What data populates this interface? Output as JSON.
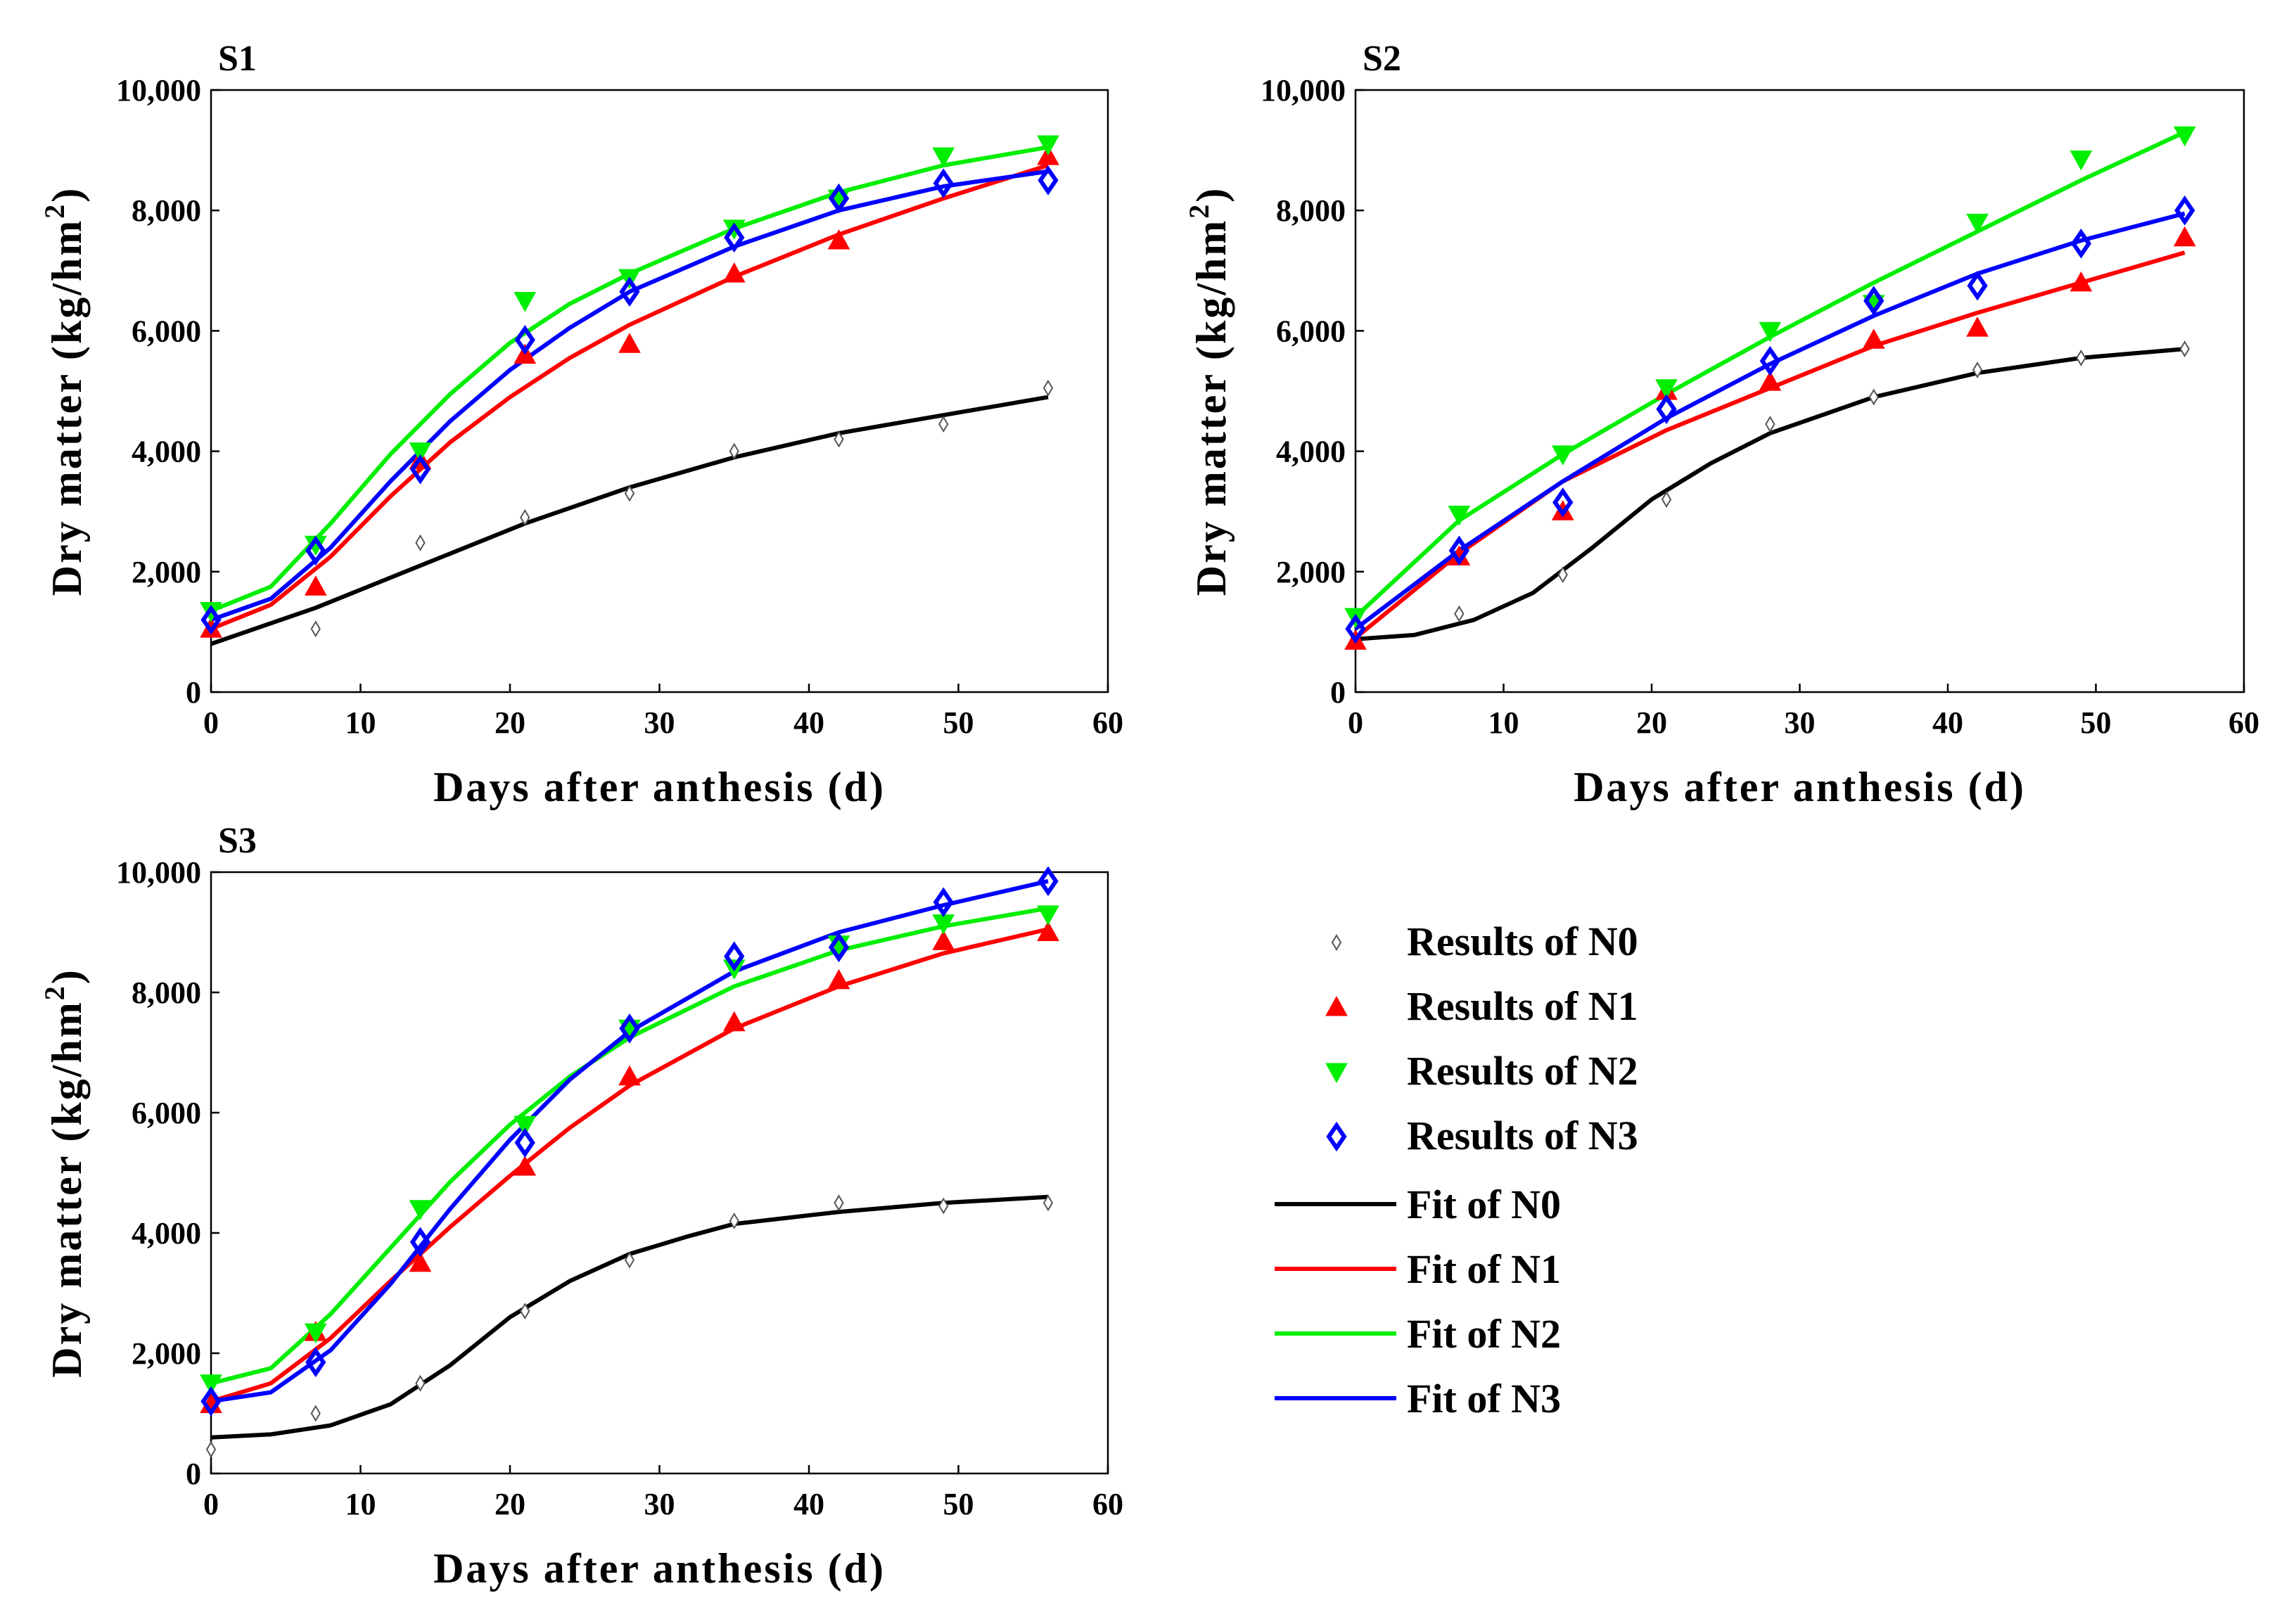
{
  "chart_data": [
    {
      "type": "line",
      "title": "S1",
      "xlabel": "Days after anthesis (d)",
      "ylabel": "Dry matter (kg/hm",
      "ylabel_sup": "2",
      "ylabel_end": ")",
      "xlim": [
        0,
        60
      ],
      "ylim": [
        0,
        10000
      ],
      "xticks": [
        "0",
        "10",
        "20",
        "30",
        "40",
        "50",
        "60"
      ],
      "yticks": [
        "0",
        "2,000",
        "4,000",
        "6,000",
        "8,000",
        "10,000"
      ],
      "x": [
        0,
        7,
        14,
        21,
        28,
        35,
        42,
        49,
        56
      ],
      "results": [
        {
          "name": "N0",
          "values": [
            1100,
            1050,
            2480,
            2900,
            3300,
            4000,
            4200,
            4450,
            5050
          ]
        },
        {
          "name": "N1",
          "values": [
            1050,
            1750,
            3850,
            5600,
            5780,
            6950,
            7500,
            null,
            8900
          ]
        },
        {
          "name": "N2",
          "values": [
            1350,
            2450,
            4000,
            6500,
            6880,
            7700,
            8200,
            8900,
            9100
          ]
        },
        {
          "name": "N3",
          "values": [
            1200,
            2350,
            3700,
            5850,
            6650,
            7550,
            8200,
            8450,
            8500
          ]
        }
      ],
      "fits": [
        {
          "name": "N0",
          "x": [
            0,
            7,
            14,
            21,
            28,
            35,
            42,
            49,
            56
          ],
          "values": [
            800,
            1400,
            2100,
            2800,
            3400,
            3900,
            4300,
            4600,
            4900
          ]
        },
        {
          "name": "N1",
          "x": [
            0,
            4,
            8,
            12,
            16,
            20,
            24,
            28,
            35,
            42,
            49,
            56
          ],
          "values": [
            1050,
            1450,
            2250,
            3250,
            4150,
            4900,
            5550,
            6100,
            6900,
            7600,
            8200,
            8750
          ]
        },
        {
          "name": "N2",
          "x": [
            0,
            4,
            8,
            12,
            16,
            20,
            24,
            28,
            35,
            42,
            49,
            56
          ],
          "values": [
            1350,
            1750,
            2800,
            3950,
            4950,
            5800,
            6450,
            6950,
            7700,
            8300,
            8750,
            9050
          ]
        },
        {
          "name": "N3",
          "x": [
            0,
            4,
            8,
            12,
            16,
            20,
            24,
            28,
            35,
            42,
            49,
            56
          ],
          "values": [
            1200,
            1550,
            2400,
            3500,
            4500,
            5350,
            6050,
            6650,
            7400,
            8000,
            8400,
            8650
          ]
        }
      ]
    },
    {
      "type": "line",
      "title": "S2",
      "xlabel": "Days after anthesis (d)",
      "ylabel": "Dry matter (kg/hm",
      "ylabel_sup": "2",
      "ylabel_end": ")",
      "xlim": [
        0,
        60
      ],
      "ylim": [
        0,
        10000
      ],
      "xticks": [
        "0",
        "10",
        "20",
        "30",
        "40",
        "50",
        "60"
      ],
      "yticks": [
        "0",
        "2,000",
        "4,000",
        "6,000",
        "8,000",
        "10,000"
      ],
      "x": [
        0,
        7,
        14,
        21,
        28,
        35,
        42,
        49,
        56
      ],
      "results": [
        {
          "name": "N0",
          "values": [
            900,
            1300,
            1950,
            3200,
            4450,
            4900,
            5350,
            5550,
            5700
          ]
        },
        {
          "name": "N1",
          "values": [
            850,
            2250,
            3000,
            5000,
            5150,
            5850,
            6050,
            6800,
            7550
          ]
        },
        {
          "name": "N2",
          "values": [
            1250,
            2950,
            3950,
            5050,
            6000,
            6450,
            7800,
            8850,
            9250
          ]
        },
        {
          "name": "N3",
          "values": [
            1050,
            2350,
            3150,
            4700,
            5500,
            6500,
            6750,
            7450,
            8000
          ]
        }
      ],
      "fits": [
        {
          "name": "N0",
          "x": [
            0,
            4,
            8,
            12,
            16,
            20,
            24,
            28,
            35,
            42,
            49,
            56
          ],
          "values": [
            880,
            950,
            1200,
            1650,
            2400,
            3200,
            3800,
            4300,
            4900,
            5300,
            5550,
            5700
          ]
        },
        {
          "name": "N1",
          "x": [
            0,
            7,
            14,
            21,
            28,
            35,
            42,
            49,
            56
          ],
          "values": [
            900,
            2300,
            3500,
            4350,
            5050,
            5750,
            6300,
            6800,
            7300
          ]
        },
        {
          "name": "N2",
          "x": [
            0,
            7,
            14,
            21,
            28,
            35,
            42,
            49,
            56
          ],
          "values": [
            1250,
            2850,
            3950,
            4950,
            5900,
            6800,
            7650,
            8500,
            9300
          ]
        },
        {
          "name": "N3",
          "x": [
            0,
            7,
            14,
            21,
            28,
            35,
            42,
            49,
            56
          ],
          "values": [
            1050,
            2350,
            3500,
            4550,
            5450,
            6250,
            6950,
            7500,
            7950
          ]
        }
      ]
    },
    {
      "type": "line",
      "title": "S3",
      "xlabel": "Days after anthesis (d)",
      "ylabel": "Dry matter (kg/hm",
      "ylabel_sup": "2",
      "ylabel_end": ")",
      "xlim": [
        0,
        60
      ],
      "ylim": [
        0,
        10000
      ],
      "xticks": [
        "0",
        "10",
        "20",
        "30",
        "40",
        "50",
        "60"
      ],
      "yticks": [
        "0",
        "2,000",
        "4,000",
        "6,000",
        "8,000",
        "10,000"
      ],
      "x": [
        0,
        7,
        14,
        21,
        28,
        35,
        42,
        49,
        56
      ],
      "results": [
        {
          "name": "N0",
          "values": [
            400,
            1000,
            1500,
            2700,
            3550,
            4200,
            4500,
            4450,
            4500
          ]
        },
        {
          "name": "N1",
          "values": [
            1150,
            2350,
            3500,
            5100,
            6600,
            7500,
            8200,
            8850,
            9000
          ]
        },
        {
          "name": "N2",
          "values": [
            1500,
            2350,
            4400,
            5800,
            7400,
            8400,
            8800,
            9150,
            9300
          ]
        },
        {
          "name": "N3",
          "values": [
            1200,
            1850,
            3850,
            5500,
            7400,
            8600,
            8750,
            9500,
            9850
          ]
        }
      ],
      "fits": [
        {
          "name": "N0",
          "x": [
            0,
            4,
            8,
            12,
            16,
            20,
            24,
            28,
            32,
            35,
            42,
            49,
            56
          ],
          "values": [
            600,
            650,
            800,
            1150,
            1800,
            2600,
            3200,
            3650,
            3950,
            4150,
            4350,
            4500,
            4600
          ]
        },
        {
          "name": "N1",
          "x": [
            0,
            4,
            8,
            12,
            16,
            20,
            24,
            28,
            35,
            42,
            49,
            56
          ],
          "values": [
            1200,
            1500,
            2250,
            3200,
            4100,
            4950,
            5750,
            6450,
            7400,
            8100,
            8650,
            9050
          ]
        },
        {
          "name": "N2",
          "x": [
            0,
            4,
            8,
            12,
            16,
            20,
            24,
            28,
            35,
            42,
            49,
            56
          ],
          "values": [
            1500,
            1750,
            2650,
            3750,
            4850,
            5800,
            6600,
            7250,
            8100,
            8700,
            9100,
            9400
          ]
        },
        {
          "name": "N3",
          "x": [
            0,
            4,
            8,
            12,
            16,
            20,
            24,
            28,
            35,
            42,
            49,
            56
          ],
          "values": [
            1200,
            1350,
            2050,
            3150,
            4400,
            5550,
            6550,
            7350,
            8350,
            9000,
            9450,
            9850
          ]
        }
      ]
    }
  ],
  "legend": {
    "results_prefix": "Results of",
    "fit_prefix": "Fit of",
    "series": [
      "N0",
      "N1",
      "N2",
      "N3"
    ]
  },
  "colors": {
    "N0": "#000000",
    "N1": "#ff0000",
    "N2": "#00ee00",
    "N3": "#0000ff"
  },
  "marker_shapes": {
    "N0": "diamond-small",
    "N1": "triangle-up",
    "N2": "triangle-down",
    "N3": "diamond-open"
  }
}
